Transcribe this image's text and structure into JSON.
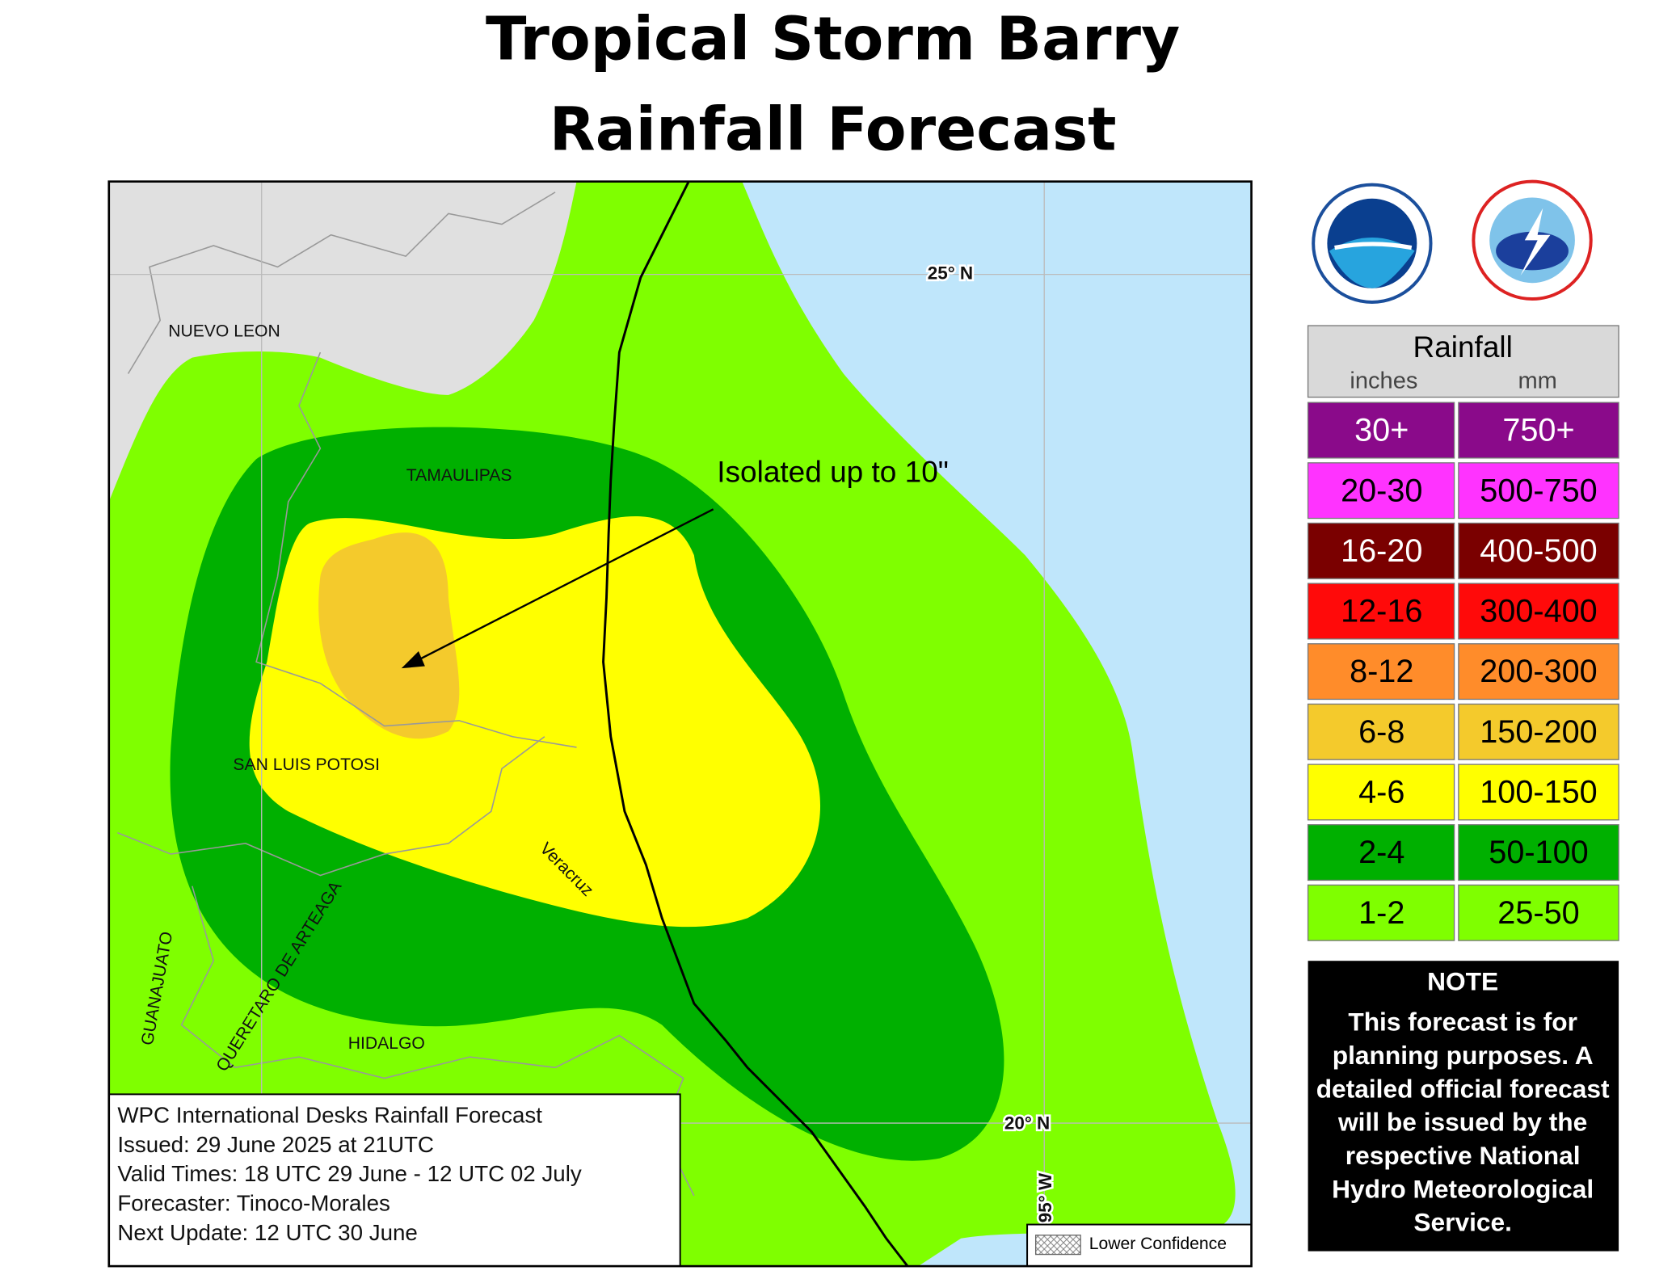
{
  "header": {
    "title_lines": [
      "Tropical Storm Barry",
      "Rainfall Forecast"
    ]
  },
  "map": {
    "grid_labels": [
      "25° N",
      "20° N",
      "95° W"
    ],
    "region_labels": [
      "NUEVO LEON",
      "TAMAULIPAS",
      "SAN LUIS POTOSI",
      "Veracruz",
      "QUERETARO DE ARTEAGA",
      "GUANAJUATO",
      "HIDALGO"
    ],
    "annotation": "Isolated up to 10\"",
    "lower_confidence": "Lower Confidence"
  },
  "info_box": {
    "lines": [
      "WPC International Desks Rainfall Forecast",
      "Issued: 29 June 2025 at 21UTC",
      "Valid Times: 18 UTC 29 June - 12 UTC 02 July",
      "Forecaster: Tinoco-Morales",
      "Next Update: 12 UTC 30 June"
    ]
  },
  "legend": {
    "title": "Rainfall",
    "units": [
      "inches",
      "mm"
    ],
    "rows": [
      {
        "inches": "30+",
        "mm": "750+",
        "color": "#8a0a8a"
      },
      {
        "inches": "20-30",
        "mm": "500-750",
        "color": "#ff33ff"
      },
      {
        "inches": "16-20",
        "mm": "400-500",
        "color": "#7a0000"
      },
      {
        "inches": "12-16",
        "mm": "300-400",
        "color": "#ff0a0a"
      },
      {
        "inches": "8-12",
        "mm": "200-300",
        "color": "#ff8c2a"
      },
      {
        "inches": "6-8",
        "mm": "150-200",
        "color": "#f4ca2c"
      },
      {
        "inches": "4-6",
        "mm": "100-150",
        "color": "#ffff00"
      },
      {
        "inches": "2-4",
        "mm": "50-100",
        "color": "#00b000"
      },
      {
        "inches": "1-2",
        "mm": "25-50",
        "color": "#7fff00"
      }
    ]
  },
  "note": {
    "title": "NOTE",
    "lines": [
      "This forecast is for",
      "planning purposes. A",
      "detailed official forecast",
      "will be issued by the",
      "respective National",
      "Hydro Meteorological",
      "Service."
    ]
  }
}
